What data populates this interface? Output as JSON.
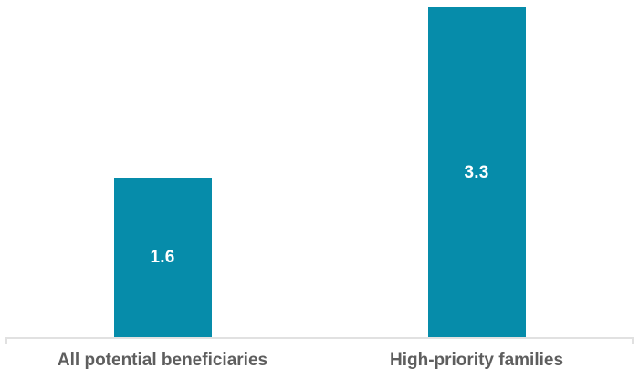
{
  "chart_data": {
    "type": "bar",
    "title": "",
    "xlabel": "",
    "ylabel": "",
    "categories": [
      "All potential beneficiaries",
      "High-priority families"
    ],
    "values": [
      1.6,
      3.3
    ],
    "value_labels": [
      "1.6",
      "3.3"
    ],
    "ylim": [
      0,
      3.37
    ],
    "grid": false,
    "legend": "none",
    "axes_shown": "x-baseline-only-with-end-ticks"
  },
  "style": {
    "bar_color": "#068CAA",
    "value_label_color": "#FFFFFF",
    "category_label_color": "#5E5E5E",
    "axis_line_color": "#E1E1E1",
    "background_color": "#FFFFFF"
  }
}
